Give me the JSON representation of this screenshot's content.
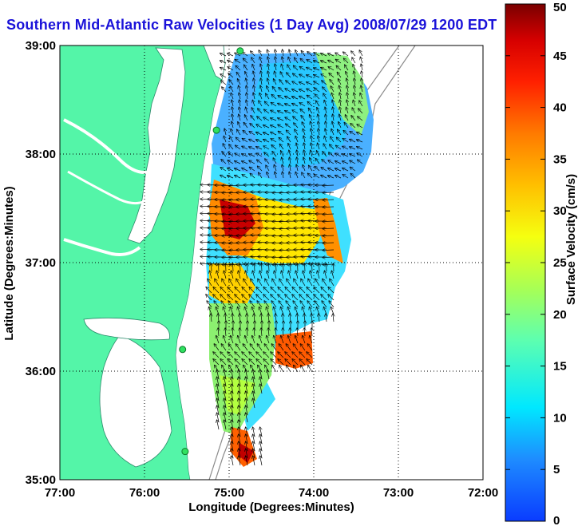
{
  "title": "Southern Mid-Atlantic Raw Velocities (1 Day Avg) 2008/07/29 1200 EDT",
  "map": {
    "xlabel": "Longitude (Degrees:Minutes)",
    "ylabel": "Latitude (Degrees:Minutes)",
    "lon_ticks": [
      "77:00",
      "76:00",
      "75:00",
      "74:00",
      "73:00",
      "72:00"
    ],
    "lat_ticks": [
      "39:00",
      "38:00",
      "37:00",
      "36:00",
      "35:00"
    ],
    "lon_range": [
      -77,
      -72
    ],
    "lat_range": [
      35,
      39
    ],
    "grid": "dotted",
    "colors": {
      "land": "#54f5a8",
      "water": "#ffffff",
      "title": "#1a12d9"
    }
  },
  "colorbar": {
    "label": "Surface Velocity (cm/s)",
    "ticks": [
      "0",
      "5",
      "10",
      "15",
      "20",
      "25",
      "30",
      "35",
      "40",
      "45",
      "50"
    ],
    "min": 0,
    "max": 50,
    "colormap": "jet"
  },
  "stations": [
    {
      "lon": -74.87,
      "lat": 38.95
    },
    {
      "lon": -75.15,
      "lat": 38.22
    },
    {
      "lon": -75.55,
      "lat": 36.2
    },
    {
      "lon": -75.52,
      "lat": 35.26
    }
  ]
}
